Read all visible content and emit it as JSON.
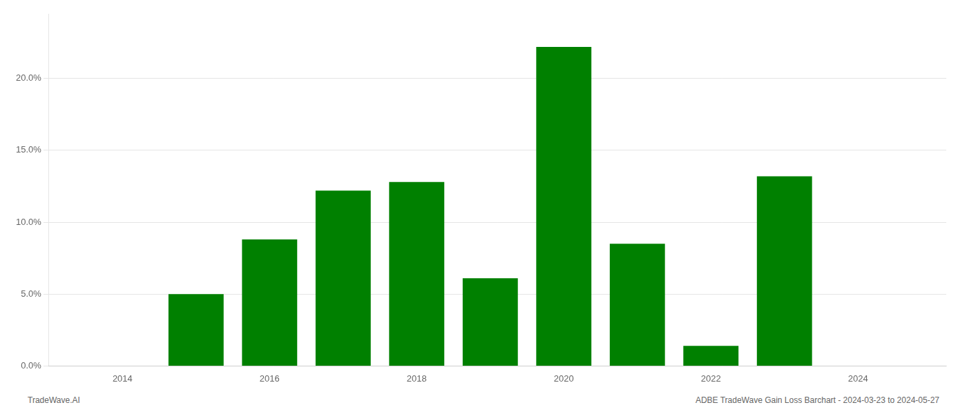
{
  "chart_data": {
    "type": "bar",
    "x": [
      2015,
      2016,
      2017,
      2018,
      2019,
      2020,
      2021,
      2022,
      2023
    ],
    "values": [
      0.05,
      0.088,
      0.122,
      0.128,
      0.061,
      0.222,
      0.085,
      0.014,
      0.132
    ],
    "color": "#008000",
    "xlim": [
      2013.0,
      2025.2
    ],
    "xticks": [
      2014,
      2016,
      2018,
      2020,
      2022,
      2024
    ],
    "ylim": [
      0,
      0.245
    ],
    "yticks": [
      {
        "value": 0.0,
        "label": "0.0%"
      },
      {
        "value": 0.05,
        "label": "5.0%"
      },
      {
        "value": 0.1,
        "label": "10.0%"
      },
      {
        "value": 0.15,
        "label": "15.0%"
      },
      {
        "value": 0.2,
        "label": "20.0%"
      }
    ],
    "grid": "y",
    "annotations": [
      "TradeWave.AI",
      "ADBE TradeWave Gain Loss Barchart - 2024-03-23 to 2024-05-27"
    ]
  }
}
